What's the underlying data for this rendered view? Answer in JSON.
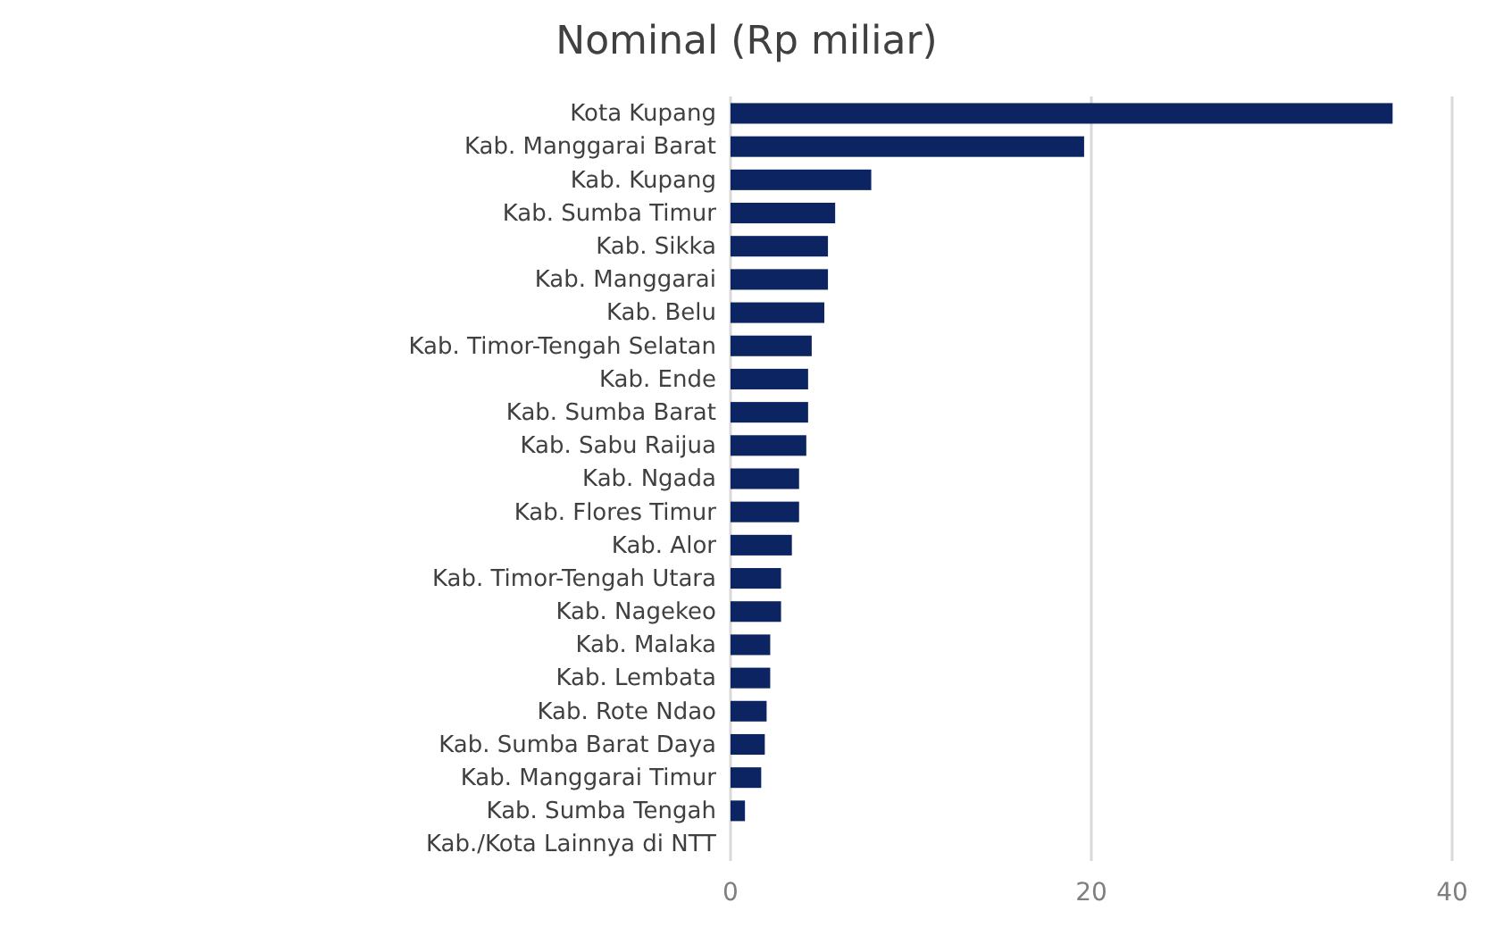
{
  "chart_data": {
    "type": "bar",
    "title": "Nominal (Rp miliar)",
    "orientation": "horizontal",
    "categories": [
      "Kota Kupang",
      "Kab. Manggarai Barat",
      "Kab. Kupang",
      "Kab. Sumba Timur",
      "Kab. Sikka",
      "Kab. Manggarai",
      "Kab. Belu",
      "Kab. Timor-Tengah Selatan",
      "Kab. Ende",
      "Kab. Sumba Barat",
      "Kab. Sabu Raijua",
      "Kab. Ngada",
      "Kab. Flores Timur",
      "Kab. Alor",
      "Kab. Timor-Tengah Utara",
      "Kab. Nagekeo",
      "Kab. Malaka",
      "Kab. Lembata",
      "Kab. Rote Ndao",
      "Kab. Sumba Barat Daya",
      "Kab. Manggarai Timur",
      "Kab. Sumba Tengah",
      "Kab./Kota Lainnya di NTT"
    ],
    "values": [
      36.7,
      19.6,
      7.8,
      5.8,
      5.4,
      5.4,
      5.2,
      4.5,
      4.3,
      4.3,
      4.2,
      3.8,
      3.8,
      3.4,
      2.8,
      2.8,
      2.2,
      2.2,
      2.0,
      1.9,
      1.7,
      0.8,
      0
    ],
    "color": "#0c2461",
    "xlim": [
      0,
      40
    ],
    "xticks": [
      0,
      20,
      40
    ],
    "grid": "x"
  }
}
